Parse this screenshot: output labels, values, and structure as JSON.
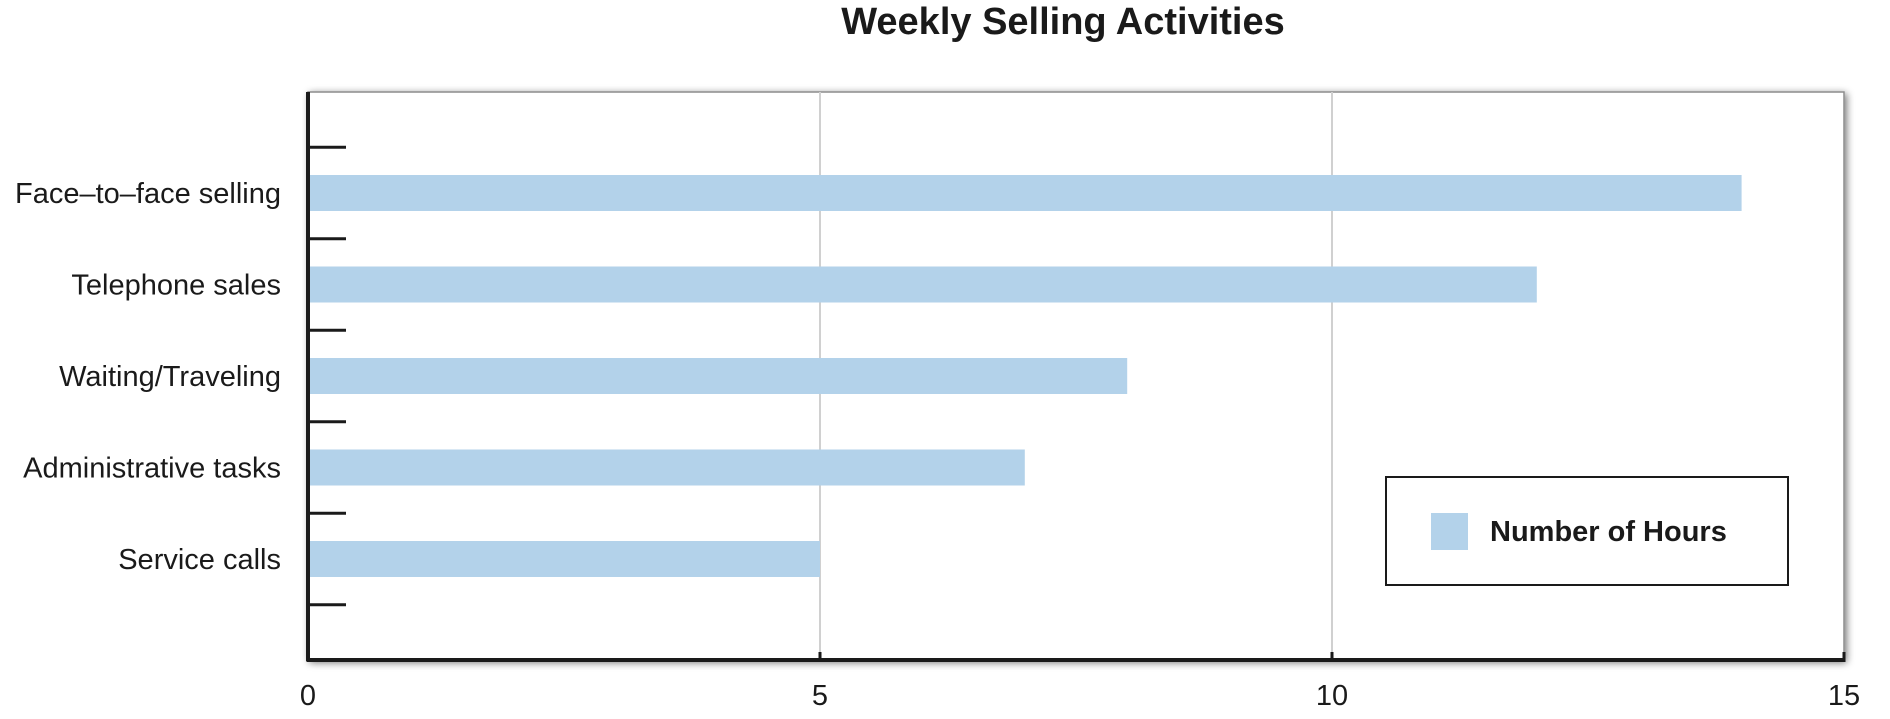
{
  "chart_data": {
    "type": "bar",
    "orientation": "horizontal",
    "title": "Weekly Selling Activities",
    "categories": [
      "Face–to–face selling",
      "Telephone sales",
      "Waiting/Traveling",
      "Administrative tasks",
      "Service calls"
    ],
    "series": [
      {
        "name": "Number of Hours",
        "values": [
          14,
          12,
          8,
          7,
          5
        ],
        "color": "#b3d2ea"
      }
    ],
    "xlim": [
      0,
      15
    ],
    "xticks": [
      "0",
      "5",
      "10",
      "15"
    ],
    "grid": "vertical",
    "legend": "bottom-right",
    "colors": {
      "gridline": "#d0d0d0",
      "axis": "#1a1a1a",
      "frame_shadow": "#a8a8a8"
    }
  }
}
